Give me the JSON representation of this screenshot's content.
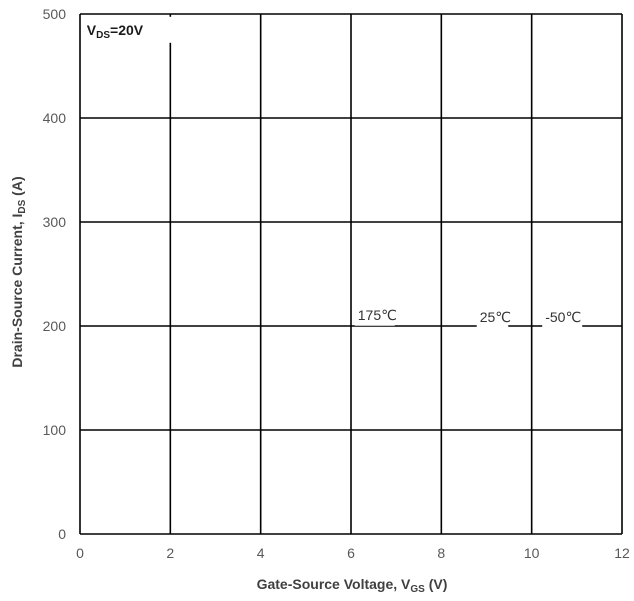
{
  "chart_data": {
    "type": "line",
    "title": "",
    "xlabel": {
      "main": "Gate-Source Voltage, V",
      "sub": "GS",
      "tail": " (V)"
    },
    "ylabel": {
      "main": "Drain-Source Current, I",
      "sub": "DS",
      "tail": " (A)"
    },
    "xlim": [
      0,
      12
    ],
    "ylim": [
      0,
      500
    ],
    "xticks": [
      0,
      2,
      4,
      6,
      8,
      10,
      12
    ],
    "yticks": [
      0,
      100,
      200,
      300,
      400,
      500
    ],
    "xtick_labels": [
      "0",
      "2",
      "4",
      "6",
      "8",
      "10",
      "12"
    ],
    "ytick_labels": [
      "0",
      "100",
      "200",
      "300",
      "400",
      "500"
    ],
    "grid": true,
    "series": [],
    "annotations": [
      {
        "id": "vds",
        "main": "V",
        "sub": "DS",
        "tail": "=20V",
        "x": 0.15,
        "y": 480,
        "bold": true
      },
      {
        "id": "t175",
        "text": "175℃",
        "x": 6.15,
        "y": 206,
        "bold": false
      },
      {
        "id": "t25",
        "text": "25℃",
        "x": 8.85,
        "y": 204,
        "bold": false
      },
      {
        "id": "tm50",
        "text": "-50℃",
        "x": 10.3,
        "y": 204,
        "bold": false
      }
    ],
    "colors": {
      "grid": "#000000",
      "tick_text": "#595959",
      "title_text": "#404040"
    }
  }
}
